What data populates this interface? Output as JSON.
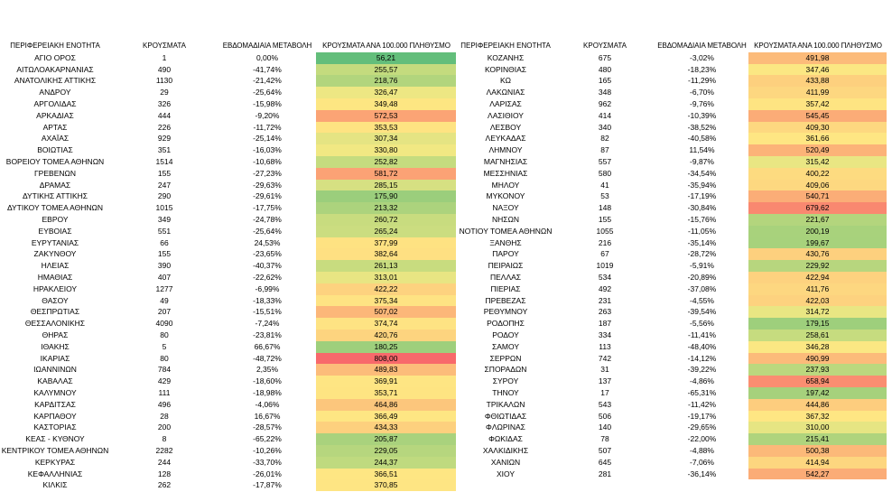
{
  "headers": {
    "left_region": "ΠΕΡΙΦΕΡΕΙΑΚΗ ΕΝΟΤΗΤΑ",
    "left_cases": "ΚΡΟΥΣΜΑΤΑ",
    "left_change": "ΕΒΔΟΜΑΔΙΑΙΑ ΜΕΤΑΒΟΛΗ",
    "left_per100k": "ΚΡΟΥΣΜΑΤΑ ΑΝΑ 100.000 ΠΛΗΘΥΣΜΟ",
    "right_region": "ΠΕΡΙΦΕΡΕΙΑΚΗ ΕΝΟΤΗΤΑ",
    "right_cases": "ΚΡΟΥΣΜΑΤΑ",
    "right_change": "ΕΒΔΟΜΑΔΙΑΙΑ ΜΕΤΑΒΟΛΗ",
    "right_per100k": "ΚΡΟΥΣΜΑΤΑ ΑΝΑ 100.000 ΠΛΗΘΥΣΜΟ"
  },
  "left_rows": [
    {
      "region": "ΑΓΙΟ ΟΡΟΣ",
      "cases": "1",
      "change": "0,00%",
      "per100k": "56,21",
      "color": "#63be7b"
    },
    {
      "region": "ΑΙΤΩΛΟΑΚΑΡΝΑΝΙΑΣ",
      "cases": "490",
      "change": "-41,74%",
      "per100k": "255,57",
      "color": "#c4db7e"
    },
    {
      "region": "ΑΝΑΤΟΛΙΚΗΣ ΑΤΤΙΚΗΣ",
      "cases": "1130",
      "change": "-21,42%",
      "per100k": "218,76",
      "color": "#b2d57d"
    },
    {
      "region": "ΑΝΔΡΟΥ",
      "cases": "29",
      "change": "-25,64%",
      "per100k": "326,47",
      "color": "#ede783"
    },
    {
      "region": "ΑΡΓΟΛΙΔΑΣ",
      "cases": "326",
      "change": "-15,98%",
      "per100k": "349,48",
      "color": "#fde682"
    },
    {
      "region": "ΑΡΚΑΔΙΑΣ",
      "cases": "444",
      "change": "-9,20%",
      "per100k": "572,53",
      "color": "#fba475"
    },
    {
      "region": "ΑΡΤΑΣ",
      "cases": "226",
      "change": "-11,72%",
      "per100k": "353,53",
      "color": "#fee382"
    },
    {
      "region": "ΑΧΑΪΑΣ",
      "cases": "929",
      "change": "-25,14%",
      "per100k": "307,34",
      "color": "#e5e483"
    },
    {
      "region": "ΒΟΙΩΤΙΑΣ",
      "cases": "351",
      "change": "-16,03%",
      "per100k": "330,80",
      "color": "#f1e883"
    },
    {
      "region": "ΒΟΡΕΙΟΥ ΤΟΜΕΑ ΑΘΗΝΩΝ",
      "cases": "1514",
      "change": "-10,68%",
      "per100k": "252,82",
      "color": "#c5dc7f"
    },
    {
      "region": "ΓΡΕΒΕΝΩΝ",
      "cases": "155",
      "change": "-27,23%",
      "per100k": "581,72",
      "color": "#fba275"
    },
    {
      "region": "ΔΡΑΜΑΣ",
      "cases": "247",
      "change": "-29,63%",
      "per100k": "285,15",
      "color": "#d6e082"
    },
    {
      "region": "ΔΥΤΙΚΗΣ ΑΤΤΙΚΗΣ",
      "cases": "290",
      "change": "-29,61%",
      "per100k": "175,90",
      "color": "#9bce7c"
    },
    {
      "region": "ΔΥΤΙΚΟΥ ΤΟΜΕΑ ΑΘΗΝΩΝ",
      "cases": "1015",
      "change": "-17,75%",
      "per100k": "213,32",
      "color": "#acd37d"
    },
    {
      "region": "ΕΒΡΟΥ",
      "cases": "349",
      "change": "-24,78%",
      "per100k": "260,72",
      "color": "#c8dc7f"
    },
    {
      "region": "ΕΥΒΟΙΑΣ",
      "cases": "551",
      "change": "-25,64%",
      "per100k": "265,24",
      "color": "#cbdd80"
    },
    {
      "region": "ΕΥΡΥΤΑΝΙΑΣ",
      "cases": "66",
      "change": "24,53%",
      "per100k": "377,99",
      "color": "#fee282"
    },
    {
      "region": "ΖΑΚΥΝΘΟΥ",
      "cases": "155",
      "change": "-23,65%",
      "per100k": "382,64",
      "color": "#fee082"
    },
    {
      "region": "ΗΛΕΙΑΣ",
      "cases": "390",
      "change": "-40,37%",
      "per100k": "261,13",
      "color": "#c8dc7f"
    },
    {
      "region": "ΗΜΑΘΙΑΣ",
      "cases": "407",
      "change": "-22,62%",
      "per100k": "313,01",
      "color": "#e8e583"
    },
    {
      "region": "ΗΡΑΚΛΕΙΟΥ",
      "cases": "1277",
      "change": "-6,99%",
      "per100k": "422,22",
      "color": "#fdd27f"
    },
    {
      "region": "ΘΑΣΟΥ",
      "cases": "49",
      "change": "-18,33%",
      "per100k": "375,34",
      "color": "#fee383"
    },
    {
      "region": "ΘΕΣΠΡΩΤΙΑΣ",
      "cases": "207",
      "change": "-15,51%",
      "per100k": "507,02",
      "color": "#fcb779"
    },
    {
      "region": "ΘΕΣΣΑΛΟΝΙΚΗΣ",
      "cases": "4090",
      "change": "-7,24%",
      "per100k": "374,74",
      "color": "#fee383"
    },
    {
      "region": "ΘΗΡΑΣ",
      "cases": "80",
      "change": "-23,81%",
      "per100k": "420,76",
      "color": "#fdd47f"
    },
    {
      "region": "ΙΘΑΚΗΣ",
      "cases": "5",
      "change": "66,67%",
      "per100k": "180,25",
      "color": "#9ecf7c"
    },
    {
      "region": "ΙΚΑΡΙΑΣ",
      "cases": "80",
      "change": "-48,72%",
      "per100k": "808,00",
      "color": "#f8696b"
    },
    {
      "region": "ΙΩΑΝΝΙΝΩΝ",
      "cases": "784",
      "change": "2,35%",
      "per100k": "489,83",
      "color": "#fcbc7a"
    },
    {
      "region": "ΚΑΒΑΛΑΣ",
      "cases": "429",
      "change": "-18,60%",
      "per100k": "369,91",
      "color": "#fee583"
    },
    {
      "region": "ΚΑΛΥΜΝΟΥ",
      "cases": "111",
      "change": "-18,98%",
      "per100k": "353,71",
      "color": "#fee482"
    },
    {
      "region": "ΚΑΡΔΙΤΣΑΣ",
      "cases": "496",
      "change": "-4,06%",
      "per100k": "464,86",
      "color": "#fcc67c"
    },
    {
      "region": "ΚΑΡΠΑΘΟΥ",
      "cases": "28",
      "change": "16,67%",
      "per100k": "366,49",
      "color": "#fee683"
    },
    {
      "region": "ΚΑΣΤΟΡΙΑΣ",
      "cases": "200",
      "change": "-28,57%",
      "per100k": "434,33",
      "color": "#fdd07e"
    },
    {
      "region": "ΚΕΑΣ - ΚΥΘΝΟΥ",
      "cases": "8",
      "change": "-65,22%",
      "per100k": "205,87",
      "color": "#a9d27d"
    },
    {
      "region": "ΚΕΝΤΡΙΚΟΥ ΤΟΜΕΑ ΑΘΗΝΩΝ",
      "cases": "2282",
      "change": "-10,26%",
      "per100k": "229,05",
      "color": "#b6d67e"
    },
    {
      "region": "ΚΕΡΚΥΡΑΣ",
      "cases": "244",
      "change": "-33,70%",
      "per100k": "244,37",
      "color": "#bfda7f"
    },
    {
      "region": "ΚΕΦΑΛΛΗΝΙΑΣ",
      "cases": "128",
      "change": "-26,01%",
      "per100k": "366,51",
      "color": "#fee683"
    },
    {
      "region": "ΚΙΛΚΙΣ",
      "cases": "262",
      "change": "-17,87%",
      "per100k": "370,85",
      "color": "#fee583"
    }
  ],
  "right_rows": [
    {
      "region": "ΚΟΖΑΝΗΣ",
      "cases": "675",
      "change": "-3,02%",
      "per100k": "491,98",
      "color": "#fcbb7a"
    },
    {
      "region": "ΚΟΡΙΝΘΙΑΣ",
      "cases": "480",
      "change": "-18,23%",
      "per100k": "347,46",
      "color": "#fbe783"
    },
    {
      "region": "ΚΩ",
      "cases": "165",
      "change": "-11,29%",
      "per100k": "433,88",
      "color": "#fdd07e"
    },
    {
      "region": "ΛΑΚΩΝΙΑΣ",
      "cases": "348",
      "change": "-6,70%",
      "per100k": "411,99",
      "color": "#fdd780"
    },
    {
      "region": "ΛΑΡΙΣΑΣ",
      "cases": "962",
      "change": "-9,76%",
      "per100k": "357,42",
      "color": "#fee482"
    },
    {
      "region": "ΛΑΣΙΘΙΟΥ",
      "cases": "414",
      "change": "-10,39%",
      "per100k": "545,45",
      "color": "#fbac77"
    },
    {
      "region": "ΛΕΣΒΟΥ",
      "cases": "340",
      "change": "-38,52%",
      "per100k": "409,30",
      "color": "#fdd880"
    },
    {
      "region": "ΛΕΥΚΑΔΑΣ",
      "cases": "82",
      "change": "-40,58%",
      "per100k": "361,66",
      "color": "#fee683"
    },
    {
      "region": "ΛΗΜΝΟΥ",
      "cases": "87",
      "change": "11,54%",
      "per100k": "520,49",
      "color": "#fcb378"
    },
    {
      "region": "ΜΑΓΝΗΣΙΑΣ",
      "cases": "557",
      "change": "-9,87%",
      "per100k": "315,42",
      "color": "#e9e683"
    },
    {
      "region": "ΜΕΣΣΗΝΙΑΣ",
      "cases": "580",
      "change": "-34,54%",
      "per100k": "400,22",
      "color": "#fddb80"
    },
    {
      "region": "ΜΗΛΟΥ",
      "cases": "41",
      "change": "-35,94%",
      "per100k": "409,06",
      "color": "#fdd880"
    },
    {
      "region": "ΜΥΚΟΝΟΥ",
      "cases": "53",
      "change": "-17,19%",
      "per100k": "540,71",
      "color": "#fbad77"
    },
    {
      "region": "ΝΑΞΟΥ",
      "cases": "148",
      "change": "-30,84%",
      "per100k": "679,62",
      "color": "#f98870"
    },
    {
      "region": "ΝΗΣΩΝ",
      "cases": "155",
      "change": "-15,76%",
      "per100k": "221,67",
      "color": "#b3d57d"
    },
    {
      "region": "ΝΟΤΙΟΥ ΤΟΜΕΑ ΑΘΗΝΩΝ",
      "cases": "1055",
      "change": "-11,05%",
      "per100k": "200,19",
      "color": "#a8d27c"
    },
    {
      "region": "ΞΑΝΘΗΣ",
      "cases": "216",
      "change": "-35,14%",
      "per100k": "199,67",
      "color": "#a7d27c"
    },
    {
      "region": "ΠΑΡΟΥ",
      "cases": "67",
      "change": "-28,72%",
      "per100k": "430,76",
      "color": "#fdd07e"
    },
    {
      "region": "ΠΕΙΡΑΙΩΣ",
      "cases": "1019",
      "change": "-5,91%",
      "per100k": "229,92",
      "color": "#b7d67e"
    },
    {
      "region": "ΠΕΛΛΑΣ",
      "cases": "534",
      "change": "-20,89%",
      "per100k": "422,94",
      "color": "#fdd27f"
    },
    {
      "region": "ΠΙΕΡΙΑΣ",
      "cases": "492",
      "change": "-37,08%",
      "per100k": "411,76",
      "color": "#fdd780"
    },
    {
      "region": "ΠΡΕΒΕΖΑΣ",
      "cases": "231",
      "change": "-4,55%",
      "per100k": "422,03",
      "color": "#fdd27f"
    },
    {
      "region": "ΡΕΘΥΜΝΟΥ",
      "cases": "263",
      "change": "-39,54%",
      "per100k": "314,72",
      "color": "#e9e683"
    },
    {
      "region": "ΡΟΔΟΠΗΣ",
      "cases": "187",
      "change": "-5,56%",
      "per100k": "179,15",
      "color": "#9ecf7c"
    },
    {
      "region": "ΡΟΔΟΥ",
      "cases": "334",
      "change": "-11,41%",
      "per100k": "258,61",
      "color": "#c6dc7f"
    },
    {
      "region": "ΣΑΜΟΥ",
      "cases": "113",
      "change": "-48,40%",
      "per100k": "346,28",
      "color": "#fbe783"
    },
    {
      "region": "ΣΕΡΡΩΝ",
      "cases": "742",
      "change": "-14,12%",
      "per100k": "490,99",
      "color": "#fcbb7a"
    },
    {
      "region": "ΣΠΟΡΑΔΩΝ",
      "cases": "31",
      "change": "-39,22%",
      "per100k": "237,93",
      "color": "#bbd87e"
    },
    {
      "region": "ΣΥΡΟΥ",
      "cases": "137",
      "change": "-4,86%",
      "per100k": "658,94",
      "color": "#fa8e71"
    },
    {
      "region": "ΤΗΝΟΥ",
      "cases": "17",
      "change": "-65,31%",
      "per100k": "197,42",
      "color": "#a6d17c"
    },
    {
      "region": "ΤΡΙΚΑΛΩΝ",
      "cases": "543",
      "change": "-11,42%",
      "per100k": "444,86",
      "color": "#fdcd7e"
    },
    {
      "region": "ΦΘΙΩΤΙΔΑΣ",
      "cases": "506",
      "change": "-19,17%",
      "per100k": "367,32",
      "color": "#fee683"
    },
    {
      "region": "ΦΛΩΡΙΝΑΣ",
      "cases": "140",
      "change": "-29,65%",
      "per100k": "310,00",
      "color": "#e6e583"
    },
    {
      "region": "ΦΩΚΙΔΑΣ",
      "cases": "78",
      "change": "-22,00%",
      "per100k": "215,41",
      "color": "#afd47d"
    },
    {
      "region": "ΧΑΛΚΙΔΙΚΗΣ",
      "cases": "507",
      "change": "-4,88%",
      "per100k": "500,38",
      "color": "#fcb979"
    },
    {
      "region": "ΧΑΝΙΩΝ",
      "cases": "645",
      "change": "-7,06%",
      "per100k": "414,94",
      "color": "#fdd67f"
    },
    {
      "region": "ΧΙΟΥ",
      "cases": "281",
      "change": "-36,14%",
      "per100k": "542,27",
      "color": "#fbac77"
    }
  ]
}
